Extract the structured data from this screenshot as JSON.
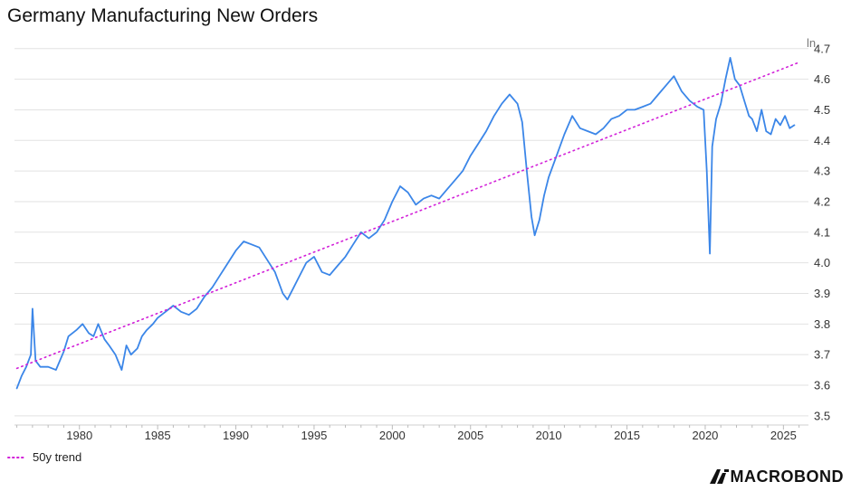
{
  "title": "Germany Manufacturing New Orders",
  "legend_label": "50y trend",
  "logo_text": "MACROBOND",
  "colors": {
    "series": "#3b86e8",
    "trend": "#d21fd8",
    "grid": "#e2e2e2"
  },
  "chart_data": {
    "type": "line",
    "title": "Germany Manufacturing New Orders",
    "ylabel": "ln",
    "xlim": [
      1975.8,
      2026.6
    ],
    "ylim": [
      3.47,
      4.72
    ],
    "xticks": [
      1980,
      1985,
      1990,
      1995,
      2000,
      2005,
      2010,
      2015,
      2020,
      2025
    ],
    "yticks": [
      "3.5",
      "3.6",
      "3.7",
      "3.8",
      "3.9",
      "4.0",
      "4.1",
      "4.2",
      "4.3",
      "4.4",
      "4.5",
      "4.6",
      "4.7"
    ],
    "grid": true,
    "legend_position": "bottom-left",
    "series": [
      {
        "name": "",
        "style": "solid",
        "x": [
          1976.0,
          1976.3,
          1976.6,
          1976.9,
          1977.0,
          1977.2,
          1977.5,
          1978.0,
          1978.5,
          1979.0,
          1979.3,
          1979.8,
          1980.2,
          1980.6,
          1980.9,
          1981.2,
          1981.6,
          1981.9,
          1982.3,
          1982.7,
          1983.0,
          1983.3,
          1983.7,
          1984.0,
          1984.3,
          1984.7,
          1985.0,
          1985.5,
          1986.0,
          1986.5,
          1987.0,
          1987.5,
          1988.0,
          1988.5,
          1989.0,
          1989.5,
          1990.0,
          1990.5,
          1991.0,
          1991.5,
          1992.0,
          1992.5,
          1993.0,
          1993.3,
          1993.7,
          1994.0,
          1994.5,
          1995.0,
          1995.5,
          1996.0,
          1996.5,
          1997.0,
          1997.5,
          1998.0,
          1998.5,
          1999.0,
          1999.5,
          2000.0,
          2000.5,
          2001.0,
          2001.5,
          2002.0,
          2002.5,
          2003.0,
          2003.5,
          2004.0,
          2004.5,
          2005.0,
          2005.5,
          2006.0,
          2006.5,
          2007.0,
          2007.5,
          2008.0,
          2008.3,
          2008.6,
          2008.9,
          2009.1,
          2009.4,
          2009.7,
          2010.0,
          2010.5,
          2011.0,
          2011.5,
          2012.0,
          2012.5,
          2013.0,
          2013.5,
          2014.0,
          2014.5,
          2015.0,
          2015.5,
          2016.0,
          2016.5,
          2017.0,
          2017.5,
          2018.0,
          2018.5,
          2019.0,
          2019.5,
          2019.9,
          2020.1,
          2020.3,
          2020.45,
          2020.7,
          2021.0,
          2021.3,
          2021.6,
          2021.9,
          2022.2,
          2022.5,
          2022.8,
          2023.0,
          2023.3,
          2023.6,
          2023.9,
          2024.2,
          2024.5,
          2024.8,
          2025.1,
          2025.4,
          2025.7
        ],
        "values": [
          3.59,
          3.63,
          3.66,
          3.7,
          3.85,
          3.68,
          3.66,
          3.66,
          3.65,
          3.71,
          3.76,
          3.78,
          3.8,
          3.77,
          3.76,
          3.8,
          3.75,
          3.73,
          3.7,
          3.65,
          3.73,
          3.7,
          3.72,
          3.76,
          3.78,
          3.8,
          3.82,
          3.84,
          3.86,
          3.84,
          3.83,
          3.85,
          3.89,
          3.92,
          3.96,
          4.0,
          4.04,
          4.07,
          4.06,
          4.05,
          4.01,
          3.97,
          3.9,
          3.88,
          3.92,
          3.95,
          4.0,
          4.02,
          3.97,
          3.96,
          3.99,
          4.02,
          4.06,
          4.1,
          4.08,
          4.1,
          4.14,
          4.2,
          4.25,
          4.23,
          4.19,
          4.21,
          4.22,
          4.21,
          4.24,
          4.27,
          4.3,
          4.35,
          4.39,
          4.43,
          4.48,
          4.52,
          4.55,
          4.52,
          4.46,
          4.3,
          4.15,
          4.09,
          4.14,
          4.22,
          4.28,
          4.35,
          4.42,
          4.48,
          4.44,
          4.43,
          4.42,
          4.44,
          4.47,
          4.48,
          4.5,
          4.5,
          4.51,
          4.52,
          4.55,
          4.58,
          4.61,
          4.56,
          4.53,
          4.51,
          4.5,
          4.3,
          4.03,
          4.38,
          4.47,
          4.52,
          4.6,
          4.67,
          4.6,
          4.58,
          4.53,
          4.48,
          4.47,
          4.43,
          4.5,
          4.43,
          4.42,
          4.47,
          4.45,
          4.48,
          4.44,
          4.45
        ]
      },
      {
        "name": "50y trend",
        "style": "dotted",
        "x": [
          1976.0,
          2026.0
        ],
        "values": [
          3.655,
          4.655
        ]
      }
    ]
  }
}
